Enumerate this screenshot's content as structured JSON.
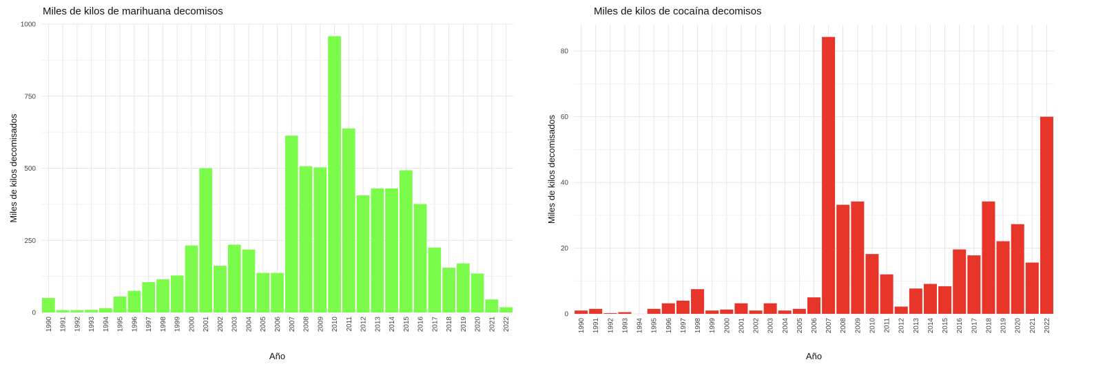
{
  "chart_data": [
    {
      "type": "bar",
      "title": "Miles de kilos de marihuana decomisos",
      "xlabel": "Año",
      "ylabel": "Miles de kilos decomisados",
      "color": "#7cfc4a",
      "ylim": [
        0,
        1000
      ],
      "yticks": [
        "0",
        "250",
        "500",
        "750",
        "1000"
      ],
      "grid": true,
      "categories": [
        "1990",
        "1991",
        "1992",
        "1993",
        "1994",
        "1995",
        "1996",
        "1997",
        "1998",
        "1999",
        "2000",
        "2001",
        "2002",
        "2003",
        "2004",
        "2005",
        "2006",
        "2007",
        "2008",
        "2009",
        "2010",
        "2011",
        "2012",
        "2013",
        "2014",
        "2015",
        "2016",
        "2017",
        "2018",
        "2019",
        "2020",
        "2021",
        "2022"
      ],
      "values": [
        50,
        8,
        8,
        9,
        15,
        55,
        75,
        105,
        115,
        128,
        232,
        500,
        162,
        235,
        218,
        137,
        137,
        613,
        507,
        503,
        958,
        638,
        406,
        430,
        430,
        493,
        376,
        225,
        155,
        170,
        135,
        45,
        18
      ]
    },
    {
      "type": "bar",
      "title": "Miles de kilos de cocaína decomisos",
      "xlabel": "Año",
      "ylabel": "Miles de kilos decomisados",
      "color": "#e8352a",
      "ylim": [
        0,
        88
      ],
      "yticks": [
        "0",
        "20",
        "40",
        "60",
        "80"
      ],
      "grid": true,
      "categories": [
        "1990",
        "1991",
        "1992",
        "1993",
        "1994",
        "1995",
        "1996",
        "1997",
        "1998",
        "1999",
        "2000",
        "2001",
        "2002",
        "2003",
        "2004",
        "2005",
        "2006",
        "2007",
        "2008",
        "2009",
        "2010",
        "2011",
        "2012",
        "2013",
        "2014",
        "2015",
        "2016",
        "2017",
        "2018",
        "2019",
        "2020",
        "2021",
        "2022"
      ],
      "values": [
        1.0,
        1.5,
        0.2,
        0.5,
        0,
        1.5,
        3.2,
        4.0,
        7.5,
        1.0,
        1.3,
        3.2,
        1.0,
        3.2,
        1.0,
        1.5,
        5.0,
        84.3,
        33.2,
        34.2,
        18.2,
        12.0,
        2.2,
        7.7,
        9.1,
        8.4,
        19.6,
        17.8,
        34.2,
        22.1,
        27.3,
        15.6,
        60.0
      ]
    }
  ]
}
